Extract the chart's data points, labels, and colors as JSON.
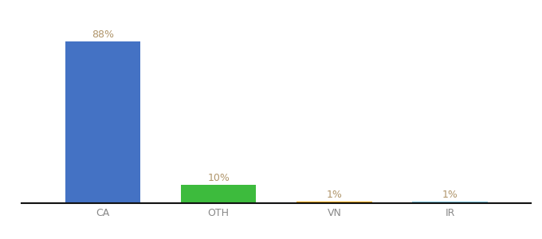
{
  "categories": [
    "CA",
    "OTH",
    "VN",
    "IR"
  ],
  "values": [
    88,
    10,
    1,
    1
  ],
  "bar_colors": [
    "#4472c4",
    "#3dbb3d",
    "#f0a500",
    "#7ec8e3"
  ],
  "labels": [
    "88%",
    "10%",
    "1%",
    "1%"
  ],
  "label_color": "#b0956a",
  "background_color": "#ffffff",
  "ylim": [
    0,
    95
  ],
  "bar_width": 0.65,
  "xlabel_color": "#888888",
  "xlabel_fontsize": 9
}
